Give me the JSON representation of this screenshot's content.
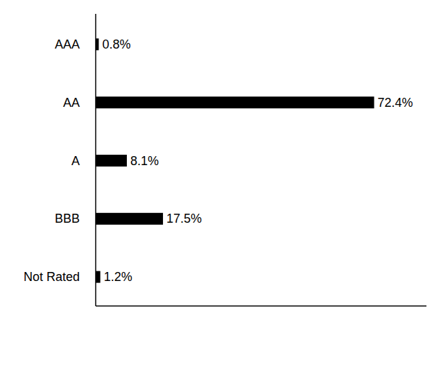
{
  "chart_data": {
    "type": "bar",
    "orientation": "horizontal",
    "categories": [
      "AAA",
      "AA",
      "A",
      "BBB",
      "Not Rated"
    ],
    "values": [
      0.8,
      72.4,
      8.1,
      17.5,
      1.2
    ],
    "value_labels": [
      "0.8%",
      "72.4%",
      "8.1%",
      "17.5%",
      "1.2%"
    ],
    "color": "#000000",
    "xlim": [
      0,
      86
    ],
    "data_labels": true,
    "tick_labels": "y",
    "grid": false
  }
}
